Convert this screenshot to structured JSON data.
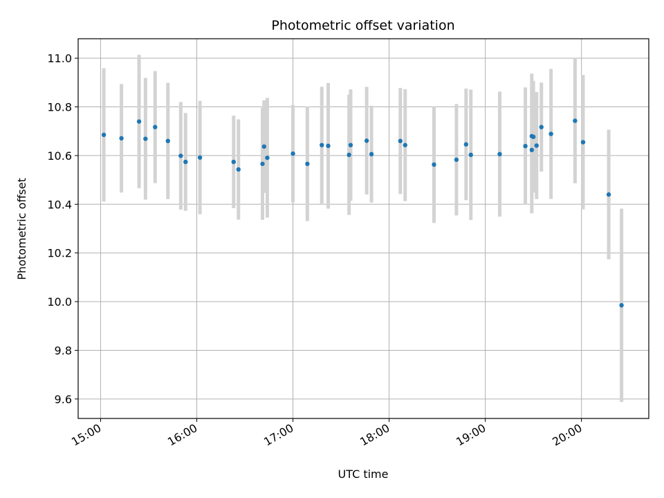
{
  "chart_data": {
    "type": "scatter",
    "title": "Photometric offset variation",
    "xlabel": "UTC time",
    "ylabel": "Photometric offset",
    "x_ticks": [
      "15:00",
      "16:00",
      "17:00",
      "18:00",
      "19:00",
      "20:00"
    ],
    "y_ticks": [
      "9.6",
      "9.8",
      "10.0",
      "10.2",
      "10.4",
      "10.6",
      "10.8",
      "11.0"
    ],
    "xlim": [
      "14:46",
      "20:42"
    ],
    "ylim": [
      9.52,
      11.08
    ],
    "grid": true,
    "colors": {
      "points": "#1f77b4",
      "errorbars": "#d3d3d3",
      "grid": "#b0b0b0"
    },
    "series": [
      {
        "points": [
          {
            "x": "15:02",
            "y": 10.685,
            "err": 0.274
          },
          {
            "x": "15:13",
            "y": 10.671,
            "err": 0.223
          },
          {
            "x": "15:24",
            "y": 10.74,
            "err": 0.274
          },
          {
            "x": "15:28",
            "y": 10.669,
            "err": 0.25
          },
          {
            "x": "15:34",
            "y": 10.717,
            "err": 0.23
          },
          {
            "x": "15:42",
            "y": 10.66,
            "err": 0.239
          },
          {
            "x": "15:50",
            "y": 10.599,
            "err": 0.221
          },
          {
            "x": "15:53",
            "y": 10.574,
            "err": 0.201
          },
          {
            "x": "16:02",
            "y": 10.592,
            "err": 0.233
          },
          {
            "x": "16:23",
            "y": 10.574,
            "err": 0.19
          },
          {
            "x": "16:26",
            "y": 10.543,
            "err": 0.206
          },
          {
            "x": "16:41",
            "y": 10.566,
            "err": 0.23
          },
          {
            "x": "16:42",
            "y": 10.637,
            "err": 0.19
          },
          {
            "x": "16:44",
            "y": 10.591,
            "err": 0.246
          },
          {
            "x": "17:00",
            "y": 10.608,
            "err": 0.2
          },
          {
            "x": "17:09",
            "y": 10.566,
            "err": 0.235
          },
          {
            "x": "17:18",
            "y": 10.643,
            "err": 0.24
          },
          {
            "x": "17:22",
            "y": 10.64,
            "err": 0.258
          },
          {
            "x": "17:35",
            "y": 10.603,
            "err": 0.247
          },
          {
            "x": "17:36",
            "y": 10.643,
            "err": 0.229
          },
          {
            "x": "17:46",
            "y": 10.661,
            "err": 0.221
          },
          {
            "x": "17:49",
            "y": 10.606,
            "err": 0.199
          },
          {
            "x": "18:07",
            "y": 10.66,
            "err": 0.218
          },
          {
            "x": "18:10",
            "y": 10.643,
            "err": 0.23
          },
          {
            "x": "18:28",
            "y": 10.563,
            "err": 0.24
          },
          {
            "x": "18:42",
            "y": 10.583,
            "err": 0.229
          },
          {
            "x": "18:48",
            "y": 10.646,
            "err": 0.229
          },
          {
            "x": "18:51",
            "y": 10.603,
            "err": 0.268
          },
          {
            "x": "19:09",
            "y": 10.606,
            "err": 0.257
          },
          {
            "x": "19:25",
            "y": 10.639,
            "err": 0.241
          },
          {
            "x": "19:29",
            "y": 10.623,
            "err": 0.26
          },
          {
            "x": "19:29",
            "y": 10.68,
            "err": 0.257
          },
          {
            "x": "19:30",
            "y": 10.677,
            "err": 0.229
          },
          {
            "x": "19:32",
            "y": 10.641,
            "err": 0.22
          },
          {
            "x": "19:35",
            "y": 10.717,
            "err": 0.183
          },
          {
            "x": "19:41",
            "y": 10.689,
            "err": 0.267
          },
          {
            "x": "19:56",
            "y": 10.743,
            "err": 0.257
          },
          {
            "x": "20:01",
            "y": 10.655,
            "err": 0.276
          },
          {
            "x": "20:17",
            "y": 10.44,
            "err": 0.266
          },
          {
            "x": "20:25",
            "y": 9.985,
            "err": 0.397
          }
        ]
      }
    ]
  }
}
